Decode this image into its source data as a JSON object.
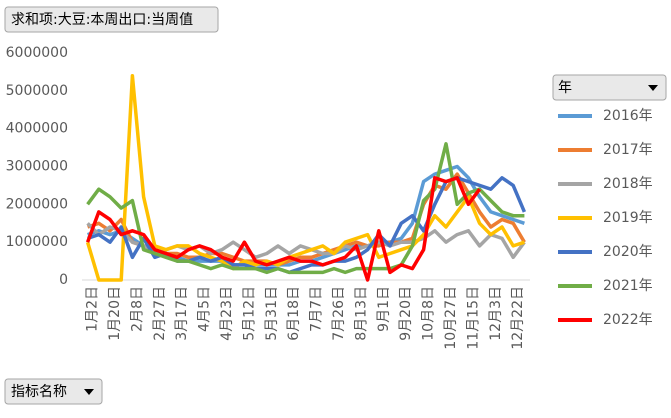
{
  "chart_data": {
    "type": "line",
    "value_field": "求和项:大豆:本周出口:当周值",
    "legend_title": "年",
    "axis_field": "指标名称",
    "categories": [
      "1月2日",
      null,
      "1月20日",
      null,
      "2月8日",
      null,
      "2月27日",
      null,
      "3月17日",
      null,
      "4月5日",
      null,
      "4月23日",
      null,
      "5月12日",
      null,
      "5月31日",
      null,
      "6月18日",
      null,
      "7月7日",
      null,
      "7月26日",
      null,
      "8月13日",
      null,
      "9月1日",
      null,
      "9月20日",
      null,
      "10月8日",
      null,
      "10月27日",
      null,
      "11月15日",
      null,
      "12月3日",
      null,
      "12月22日",
      null
    ],
    "ylim": [
      0,
      6000000
    ],
    "yticks": [
      0,
      1000000,
      2000000,
      3000000,
      4000000,
      5000000,
      6000000
    ],
    "series": [
      {
        "name": "2016年",
        "color": "#5b9bd5",
        "values": [
          1200000,
          1300000,
          1200000,
          1300000,
          1100000,
          900000,
          800000,
          700000,
          600000,
          500000,
          500000,
          500000,
          500000,
          400000,
          400000,
          400000,
          400000,
          400000,
          400000,
          500000,
          500000,
          600000,
          700000,
          800000,
          900000,
          900000,
          1000000,
          1000000,
          1100000,
          1500000,
          2600000,
          2800000,
          2900000,
          3000000,
          2700000,
          2200000,
          1800000,
          1700000,
          1600000,
          1500000
        ]
      },
      {
        "name": "2017年",
        "color": "#ed7d31",
        "values": [
          1400000,
          1500000,
          1300000,
          1600000,
          1000000,
          900000,
          800000,
          700000,
          700000,
          600000,
          600000,
          700000,
          700000,
          600000,
          500000,
          500000,
          500000,
          400000,
          500000,
          600000,
          600000,
          700000,
          800000,
          900000,
          1000000,
          900000,
          900000,
          1000000,
          1000000,
          1100000,
          2000000,
          2500000,
          2400000,
          2800000,
          2300000,
          1800000,
          1400000,
          1600000,
          1500000,
          1000000
        ]
      },
      {
        "name": "2018年",
        "color": "#a5a5a5",
        "values": [
          1500000,
          1200000,
          1400000,
          1300000,
          1000000,
          900000,
          700000,
          800000,
          900000,
          800000,
          900000,
          700000,
          800000,
          1000000,
          800000,
          600000,
          700000,
          900000,
          700000,
          900000,
          800000,
          700000,
          700000,
          900000,
          800000,
          900000,
          1000000,
          900000,
          1000000,
          1000000,
          1100000,
          1300000,
          1000000,
          1200000,
          1300000,
          900000,
          1200000,
          1100000,
          600000,
          1000000
        ]
      },
      {
        "name": "2019年",
        "color": "#ffc000",
        "values": [
          1000000,
          0,
          0,
          0,
          5400000,
          2200000,
          900000,
          800000,
          900000,
          900000,
          700000,
          600000,
          500000,
          300000,
          500000,
          400000,
          500000,
          400000,
          600000,
          700000,
          800000,
          900000,
          700000,
          1000000,
          1100000,
          1200000,
          600000,
          700000,
          800000,
          900000,
          1200000,
          1700000,
          1400000,
          1800000,
          2200000,
          1500000,
          1200000,
          1400000,
          900000,
          1000000
        ]
      },
      {
        "name": "2020年",
        "color": "#4472c4",
        "values": [
          1100000,
          1200000,
          1000000,
          1400000,
          600000,
          1100000,
          600000,
          700000,
          500000,
          500000,
          600000,
          500000,
          600000,
          400000,
          400000,
          300000,
          300000,
          300000,
          200000,
          300000,
          400000,
          400000,
          500000,
          500000,
          600000,
          800000,
          1200000,
          900000,
          1500000,
          1700000,
          1300000,
          2000000,
          2600000,
          2700000,
          2600000,
          2500000,
          2400000,
          2700000,
          2500000,
          1800000
        ]
      },
      {
        "name": "2021年",
        "color": "#70ad47",
        "values": [
          2000000,
          2400000,
          2200000,
          1900000,
          2100000,
          800000,
          700000,
          600000,
          500000,
          500000,
          400000,
          300000,
          400000,
          300000,
          300000,
          300000,
          200000,
          300000,
          200000,
          200000,
          200000,
          200000,
          300000,
          200000,
          300000,
          300000,
          300000,
          300000,
          400000,
          900000,
          2100000,
          2400000,
          3600000,
          2000000,
          2300000,
          2400000,
          2100000,
          1800000,
          1700000,
          1700000
        ]
      },
      {
        "name": "2022年",
        "color": "#ff0000",
        "values": [
          1000000,
          1800000,
          1600000,
          1200000,
          1300000,
          1200000,
          800000,
          700000,
          600000,
          800000,
          900000,
          800000,
          600000,
          500000,
          1000000,
          500000,
          400000,
          500000,
          600000,
          500000,
          500000,
          400000,
          500000,
          600000,
          900000,
          0,
          1300000,
          200000,
          400000,
          300000,
          800000,
          2700000,
          2600000,
          2700000,
          2000000,
          2400000,
          null,
          null,
          null,
          null
        ]
      }
    ]
  }
}
